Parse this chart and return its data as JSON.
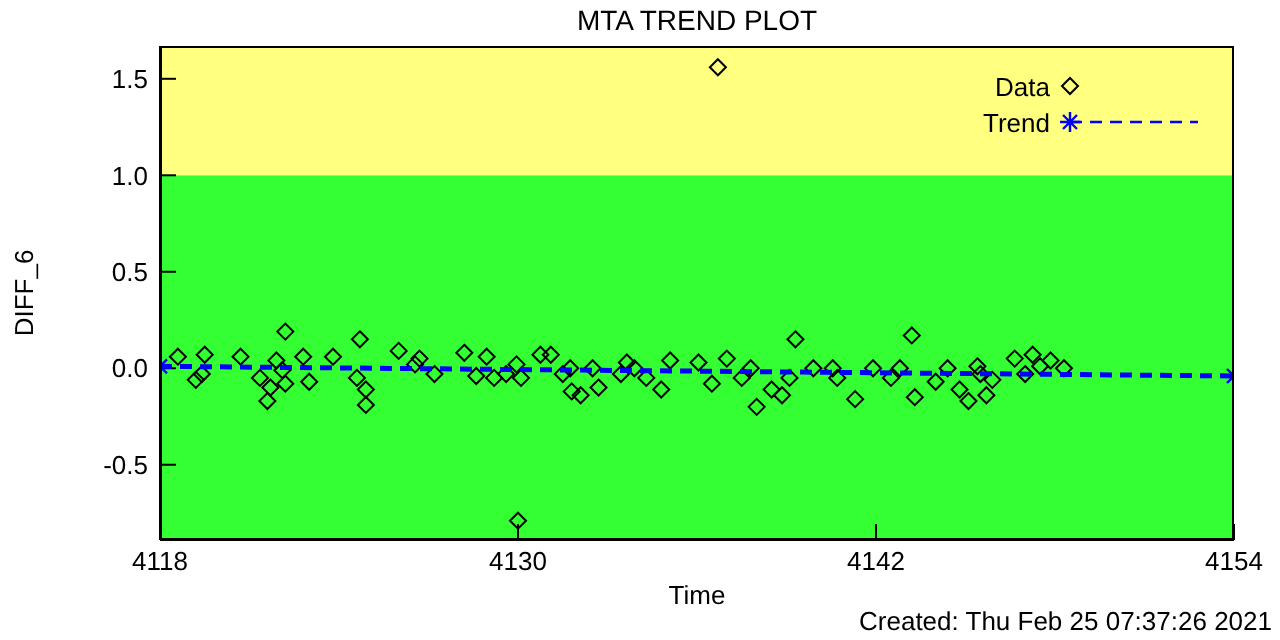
{
  "chart_data": {
    "type": "scatter",
    "title": "MTA TREND PLOT",
    "xlabel": "Time",
    "ylabel": "DIFF_6",
    "annotations": [
      "Created: Thu Feb 25 07:37:26 2021"
    ],
    "xlim": [
      4118,
      4154
    ],
    "xticks": [
      4118,
      4130,
      4142,
      4154
    ],
    "ylim": [
      -0.89,
      1.67
    ],
    "yticks": [
      -0.5,
      {
        "value": 0,
        "label": "0.0"
      },
      0.5,
      {
        "value": 1,
        "label": "1.0"
      },
      1.5
    ],
    "bands": [
      {
        "axis": "y",
        "from": -0.89,
        "to": 1.0,
        "color": "#33ff33"
      },
      {
        "axis": "y",
        "from": 1.0,
        "to": 1.67,
        "color": "#ffff80"
      }
    ],
    "legend": "top right",
    "series": [
      {
        "name": "Data",
        "marker": "diamond",
        "color": "#000000",
        "x": [
          4118.6,
          4119.5,
          4119.2,
          4119.4,
          4120.7,
          4122.2,
          4121.9,
          4121.35,
          4121.6,
          4121.7,
          4122.2,
          4122.1,
          4122.8,
          4123.0,
          4123.8,
          4124.7,
          4124.6,
          4124.9,
          4124.9,
          4126.0,
          4126.7,
          4126.55,
          4127.2,
          4128.2,
          4128.95,
          4128.6,
          4129.2,
          4129.95,
          4129.6,
          4130.1,
          4130.0,
          4130.75,
          4131.1,
          4131.5,
          4131.75,
          4131.8,
          4132.1,
          4132.5,
          4132.7,
          4133.45,
          4133.65,
          4133.9,
          4134.3,
          4134.8,
          4135.1,
          4136.05,
          4136.5,
          4137.0,
          4137.5,
          4137.8,
          4138.0,
          4138.5,
          4138.85,
          4139.3,
          4139.1,
          4139.9,
          4140.55,
          4140.7,
          4141.3,
          4141.9,
          4142.5,
          4142.8,
          4143.2,
          4143.3,
          4144.0,
          4144.4,
          4144.8,
          4145.1,
          4145.4,
          4145.5,
          4145.7,
          4145.9,
          4146.65,
          4147.0,
          4147.25,
          4147.5,
          4147.85,
          4148.3,
          4136.7
        ],
        "values": [
          0.06,
          0.07,
          -0.06,
          -0.03,
          0.06,
          0.19,
          0.04,
          -0.05,
          -0.17,
          -0.1,
          -0.08,
          -0.01,
          0.06,
          -0.07,
          0.06,
          0.15,
          -0.05,
          -0.11,
          -0.19,
          0.09,
          0.05,
          0.02,
          -0.03,
          0.08,
          0.06,
          -0.04,
          -0.05,
          0.02,
          -0.03,
          -0.05,
          -0.79,
          0.07,
          0.07,
          -0.03,
          0.0,
          -0.12,
          -0.14,
          0.0,
          -0.1,
          -0.03,
          0.03,
          0.0,
          -0.05,
          -0.11,
          0.04,
          0.03,
          -0.08,
          0.05,
          -0.05,
          0.0,
          -0.2,
          -0.11,
          -0.14,
          0.15,
          -0.05,
          0.0,
          0.0,
          -0.05,
          -0.16,
          0.0,
          -0.05,
          0.0,
          0.17,
          -0.15,
          -0.07,
          0.0,
          -0.11,
          -0.17,
          0.01,
          -0.03,
          -0.14,
          -0.06,
          0.05,
          -0.03,
          0.07,
          0.01,
          0.04,
          0.0,
          1.56
        ]
      },
      {
        "name": "Trend",
        "type": "line",
        "marker": "cross",
        "line_style": "dashed",
        "color": "#0000ff",
        "x": [
          4118,
          4154
        ],
        "values": [
          0.01,
          -0.04
        ]
      }
    ]
  }
}
